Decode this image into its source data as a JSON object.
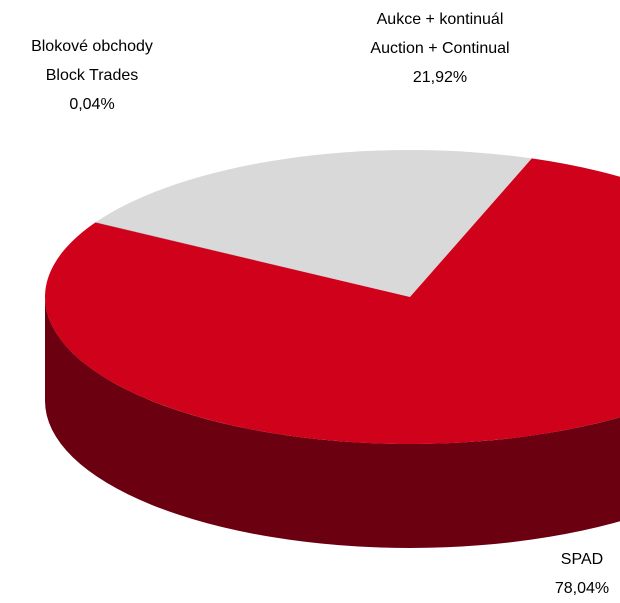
{
  "chart_data": {
    "type": "pie3d",
    "categories": [
      [
        "Aukce + kontinuál",
        "Auction + Continual"
      ],
      [
        "Blokové obchody",
        "Block Trades"
      ],
      [
        "SPAD"
      ]
    ],
    "values": [
      21.92,
      0.04,
      78.04
    ],
    "value_labels": [
      "21,92%",
      "0,04%",
      "78,04%"
    ],
    "colors": [
      "#d9d9d9",
      "#8c8c8c",
      "#d0021b"
    ],
    "side_colors": [
      "#a0a0a0",
      "#5a5a5a",
      "#6b0011"
    ]
  }
}
